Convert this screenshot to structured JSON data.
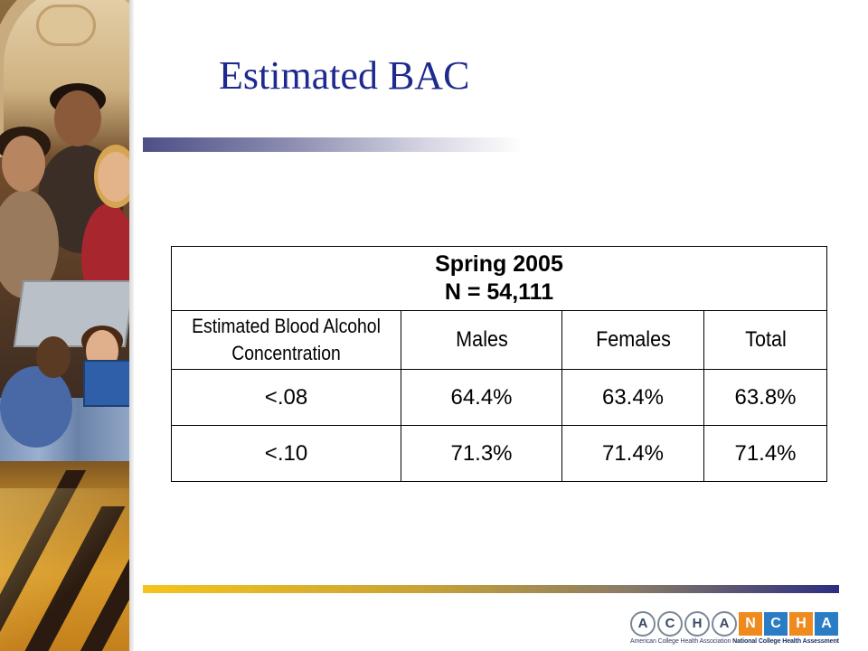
{
  "slide": {
    "title": "Estimated BAC"
  },
  "table": {
    "header_line1": "Spring 2005",
    "header_line2": "N = 54,111",
    "columns": [
      "Estimated Blood Alcohol Concentration",
      "Males",
      "Females",
      "Total"
    ],
    "rows": [
      {
        "label": "<.08",
        "males": "64.4%",
        "females": "63.4%",
        "total": "63.8%"
      },
      {
        "label": "<.10",
        "males": "71.3%",
        "females": "71.4%",
        "total": "71.4%"
      }
    ]
  },
  "logo": {
    "left_letters": [
      "A",
      "C",
      "H",
      "A"
    ],
    "right_letters": [
      "N",
      "C",
      "H",
      "A"
    ],
    "left_caption": "American College Health Association",
    "right_caption": "National College Health Assessment"
  },
  "colors": {
    "title": "#1f2a8f",
    "logo_orange": "#ef8a1e",
    "logo_blue": "#2a7cc4"
  }
}
